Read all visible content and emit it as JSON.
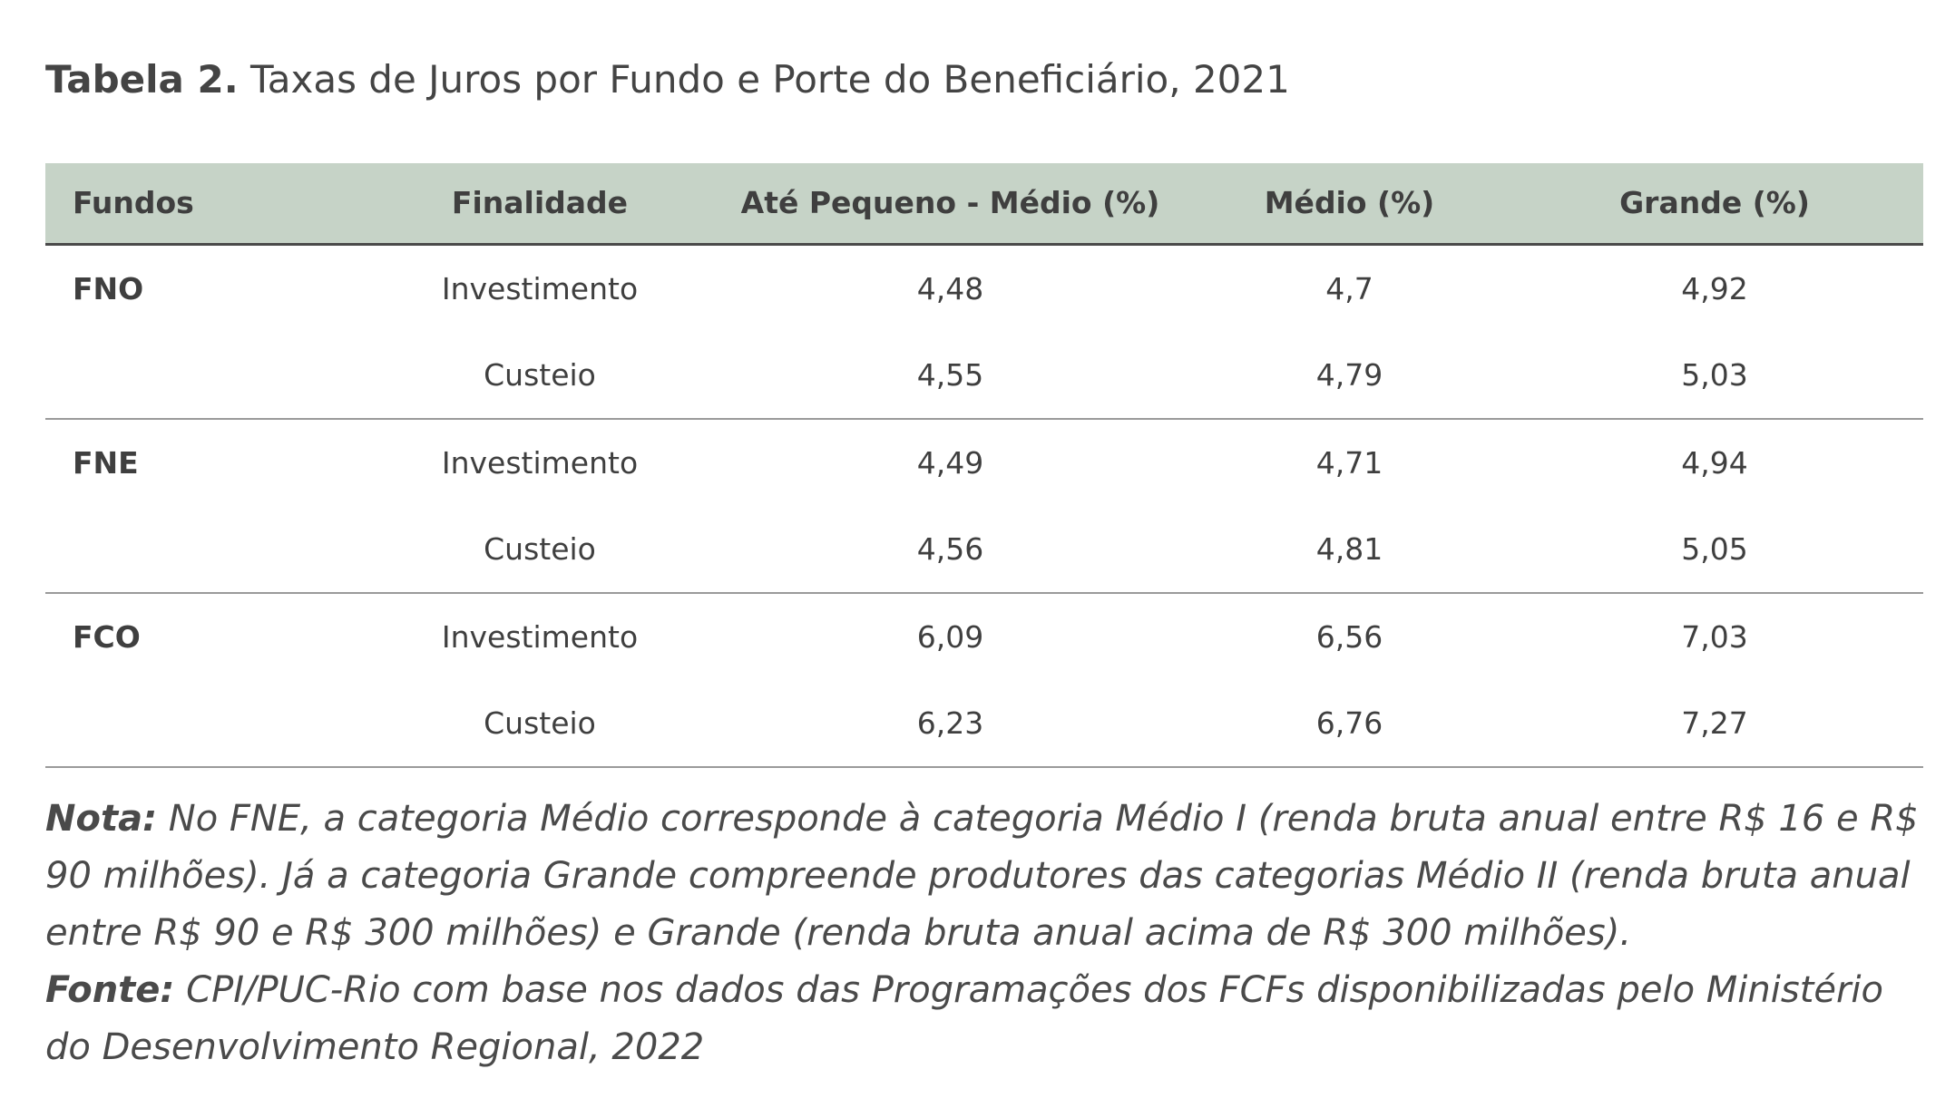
{
  "title": {
    "label": "Tabela 2.",
    "text": "Taxas de Juros por Fundo e Porte do Beneficiário, 2021"
  },
  "table": {
    "headers": [
      "Fundos",
      "Finalidade",
      "Até Pequeno - Médio (%)",
      "Médio (%)",
      "Grande (%)"
    ],
    "rows": [
      [
        "FNO",
        "Investimento",
        "4,48",
        "4,7",
        "4,92"
      ],
      [
        "",
        "Custeio",
        "4,55",
        "4,79",
        "5,03"
      ],
      [
        "FNE",
        "Investimento",
        "4,49",
        "4,71",
        "4,94"
      ],
      [
        "",
        "Custeio",
        "4,56",
        "4,81",
        "5,05"
      ],
      [
        "FCO",
        "Investimento",
        "6,09",
        "6,56",
        "7,03"
      ],
      [
        "",
        "Custeio",
        "6,23",
        "6,76",
        "7,27"
      ]
    ]
  },
  "notes": {
    "nota_label": "Nota:",
    "nota_text": "No FNE, a categoria Médio corresponde à categoria Médio I (renda bruta anual entre R$ 16 e R$ 90 milhões). Já a categoria Grande compreende produtores das categorias Médio II (renda bruta anual entre R$ 90 e R$ 300 milhões) e Grande (renda bruta anual acima de R$ 300 milhões).",
    "fonte_label": "Fonte:",
    "fonte_text": "CPI/PUC-Rio com base nos dados das Programações dos FCFs disponibilizadas pelo Ministério do Desenvolvimento Regional, 2022"
  }
}
